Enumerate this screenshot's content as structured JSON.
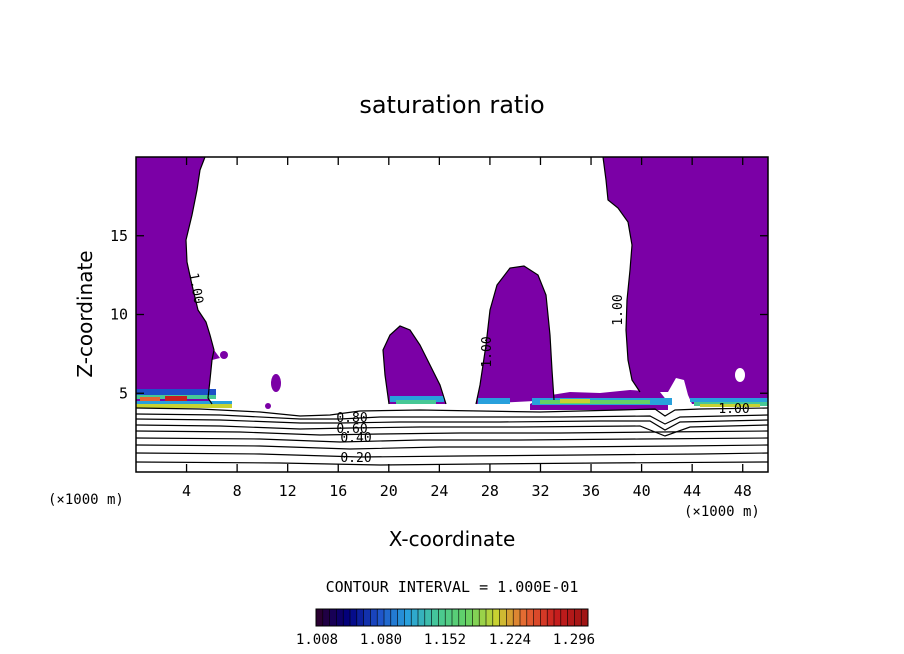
{
  "chart_data": {
    "type": "heatmap",
    "title": "saturation ratio",
    "xlabel": "X-coordinate",
    "ylabel": "Z-coordinate",
    "x_unit": "(×1000 m)",
    "y_unit": "(×1000 m)",
    "xlim": [
      0,
      50
    ],
    "ylim": [
      0,
      20
    ],
    "x_ticks": [
      4,
      8,
      12,
      16,
      20,
      24,
      28,
      32,
      36,
      40,
      44,
      48
    ],
    "y_ticks": [
      5,
      10,
      15
    ],
    "contour_interval": "CONTOUR INTERVAL = 1.000E-01",
    "contour_labels": [
      "1.00",
      "1.00",
      "1.00",
      "1.00",
      "0.80",
      "0.60",
      "0.40",
      "0.20"
    ],
    "colorbar": {
      "ticks": [
        "1.008",
        "1.080",
        "1.152",
        "1.224",
        "1.296"
      ],
      "colors": [
        "#2a0032",
        "#000080",
        "#1e50c8",
        "#28a0dc",
        "#46c896",
        "#64d264",
        "#c8d232",
        "#e66432",
        "#c81e1e",
        "#a01414"
      ]
    },
    "colors": {
      "supersaturated_fill": "#7b00a6",
      "background": "#ffffff"
    }
  }
}
